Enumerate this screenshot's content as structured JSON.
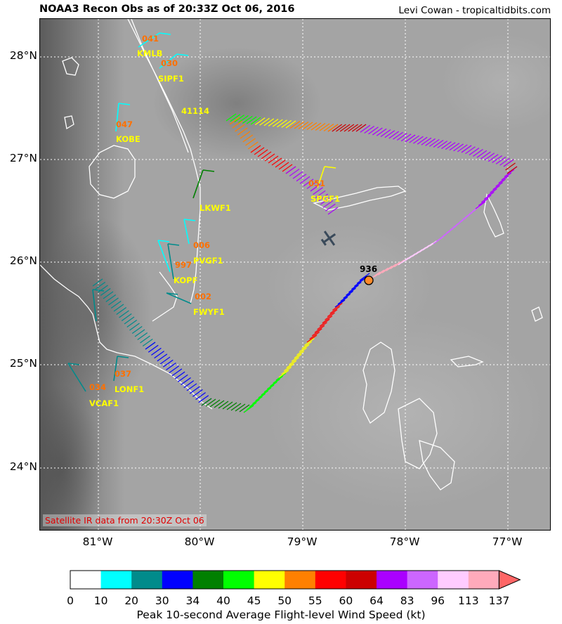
{
  "header": {
    "title": "NOAA3 Recon Obs as of 20:33Z Oct 06, 2016",
    "credit": "Levi Cowan - tropicaltidbits.com"
  },
  "map": {
    "lat_labels": [
      "28°N",
      "27°N",
      "26°N",
      "25°N",
      "24°N"
    ],
    "lon_labels": [
      "81°W",
      "80°W",
      "79°W",
      "78°W",
      "77°W"
    ],
    "satellite_caption": "Satellite IR data from 20:30Z Oct 06",
    "storm_pressure_label": "936",
    "stations": [
      {
        "name": "KMLB",
        "value": "041"
      },
      {
        "name": "SIPF1",
        "value": "030"
      },
      {
        "name": "41114",
        "value": ""
      },
      {
        "name": "KOBE",
        "value": "047"
      },
      {
        "name": "LKWF1",
        "value": ""
      },
      {
        "name": "PVGF1",
        "value": "006"
      },
      {
        "name": "KOPF",
        "value": "997"
      },
      {
        "name": "FWYF1",
        "value": "002"
      },
      {
        "name": "SPGF1",
        "value": "051"
      },
      {
        "name": "LONF1",
        "value": "037"
      },
      {
        "name": "VCAF1",
        "value": "034"
      }
    ]
  },
  "colorbar": {
    "label": "Peak 10-second Average Flight-level Wind Speed (kt)",
    "ticks": [
      "0",
      "10",
      "20",
      "30",
      "34",
      "40",
      "45",
      "50",
      "55",
      "60",
      "64",
      "83",
      "96",
      "113",
      "137"
    ],
    "colors": [
      "#ffffff",
      "#00ffff",
      "#008b8b",
      "#0000ff",
      "#008000",
      "#00ff00",
      "#ffff00",
      "#ff8000",
      "#ff0000",
      "#cc0000",
      "#aa00ff",
      "#cc66ff",
      "#ffccff",
      "#ffaabb",
      "#ff6666"
    ]
  }
}
